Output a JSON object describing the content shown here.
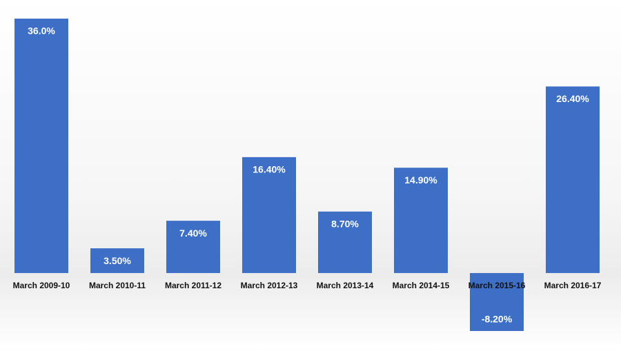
{
  "chart_data": {
    "type": "bar",
    "categories": [
      "March 2009-10",
      "March 2010-11",
      "March 2011-12",
      "March 2012-13",
      "March 2013-14",
      "March 2014-15",
      "March 2015-16",
      "March 2016-17"
    ],
    "values": [
      36.0,
      3.5,
      7.4,
      16.4,
      8.7,
      14.9,
      -8.2,
      26.4
    ],
    "value_labels": [
      "36.0%",
      "3.50%",
      "7.40%",
      "16.40%",
      "8.70%",
      "14.90%",
      "-8.20%",
      "26.40%"
    ],
    "color": "#3d6fc6"
  }
}
